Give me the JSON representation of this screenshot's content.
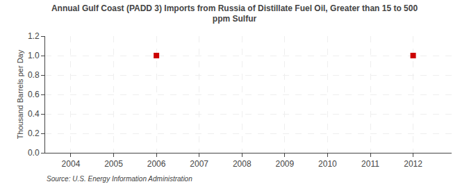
{
  "chart_data": {
    "type": "scatter",
    "title": "Annual Gulf Coast (PADD 3) Imports from Russia of Distillate Fuel Oil, Greater than 15 to 500\nppm Sulfur",
    "ylabel": "Thousand Barrels per Day",
    "annotations": [
      "Source: U.S. Energy Information Administration"
    ],
    "x": [
      2006,
      2012
    ],
    "values": [
      1.0,
      1.0
    ],
    "color": "#cc0000",
    "marker": "square",
    "xlim": [
      2003.4,
      2012.9
    ],
    "xticks": [
      2004,
      2005,
      2006,
      2007,
      2008,
      2009,
      2010,
      2011,
      2012
    ],
    "ylim": [
      0.0,
      1.2
    ],
    "yticks": [
      {
        "value": 0.0,
        "label": "0.0"
      },
      {
        "value": 0.2,
        "label": "0.2"
      },
      {
        "value": 0.4,
        "label": "0.4"
      },
      {
        "value": 0.6,
        "label": "0.6"
      },
      {
        "value": 0.8,
        "label": "0.8"
      },
      {
        "value": 1.0,
        "label": "1.0"
      },
      {
        "value": 1.2,
        "label": "1.2"
      }
    ],
    "grid": true
  }
}
